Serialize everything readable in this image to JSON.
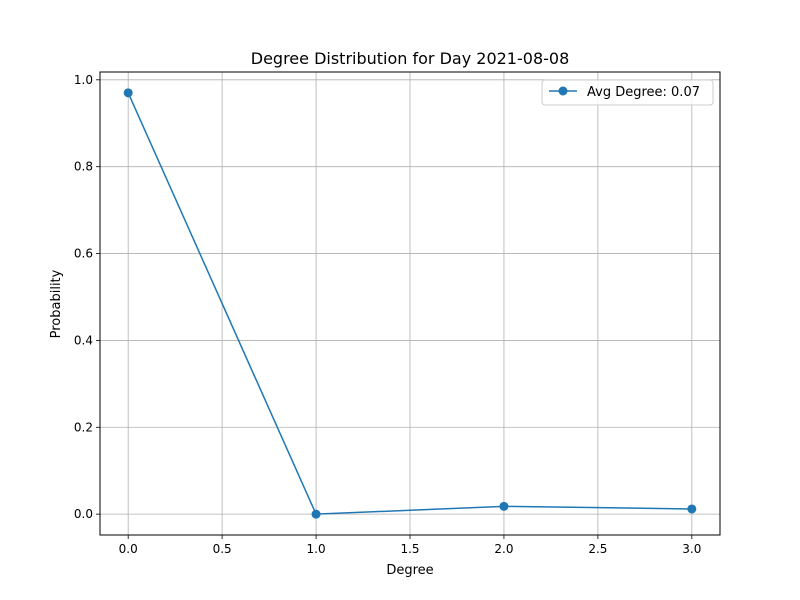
{
  "chart_data": {
    "type": "line",
    "title": "Degree Distribution for Day 2021-08-08",
    "xlabel": "Degree",
    "ylabel": "Probability",
    "x": [
      0.0,
      1.0,
      2.0,
      3.0
    ],
    "series": [
      {
        "name": "Avg Degree: 0.07",
        "values": [
          0.97,
          0.0,
          0.018,
          0.012
        ],
        "color": "#1f77b4",
        "marker": "circle"
      }
    ],
    "xlim": [
      -0.15,
      3.15
    ],
    "ylim": [
      -0.048,
      1.018
    ],
    "x_ticks": [
      0.0,
      0.5,
      1.0,
      1.5,
      2.0,
      2.5,
      3.0
    ],
    "x_tick_labels": [
      "0.0",
      "0.5",
      "1.0",
      "1.5",
      "2.0",
      "2.5",
      "3.0"
    ],
    "y_ticks": [
      0.0,
      0.2,
      0.4,
      0.6,
      0.8,
      1.0
    ],
    "y_tick_labels": [
      "0.0",
      "0.2",
      "0.4",
      "0.6",
      "0.8",
      "1.0"
    ],
    "grid": true,
    "legend_position": "top-right"
  }
}
